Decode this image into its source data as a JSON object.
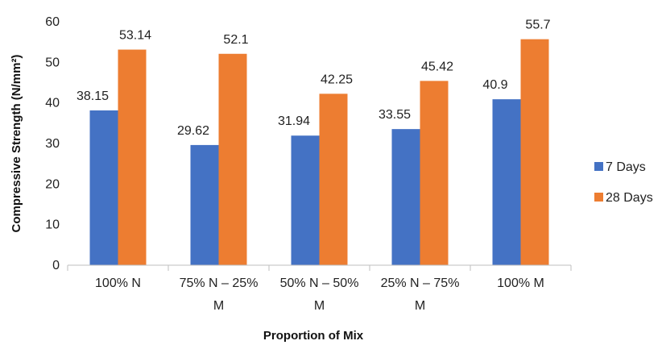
{
  "chart_data": {
    "type": "bar",
    "categories": [
      [
        "100% N"
      ],
      [
        "75% N – 25%",
        "M"
      ],
      [
        "50% N – 50%",
        "M"
      ],
      [
        "25% N – 75%",
        "M"
      ],
      [
        "100% M"
      ]
    ],
    "series": [
      {
        "name": "7 Days",
        "color": "#4472C4",
        "values": [
          38.15,
          29.62,
          31.94,
          33.55,
          40.9
        ]
      },
      {
        "name": "28 Days",
        "color": "#ED7D31",
        "values": [
          53.14,
          52.1,
          42.25,
          45.42,
          55.7
        ]
      }
    ],
    "data_labels": [
      [
        "38.15",
        "29.62",
        "31.94",
        "33.55",
        "40.9"
      ],
      [
        "53.14",
        "52.1",
        "42.25",
        "45.42",
        "55.7"
      ]
    ],
    "xlabel": "Proportion of Mix",
    "ylabel": "Compressive Strength (N/mm²)",
    "ylim": [
      0,
      60
    ],
    "yticks": [
      0,
      10,
      20,
      30,
      40,
      50,
      60
    ],
    "grid": false,
    "legend_position": "right"
  }
}
